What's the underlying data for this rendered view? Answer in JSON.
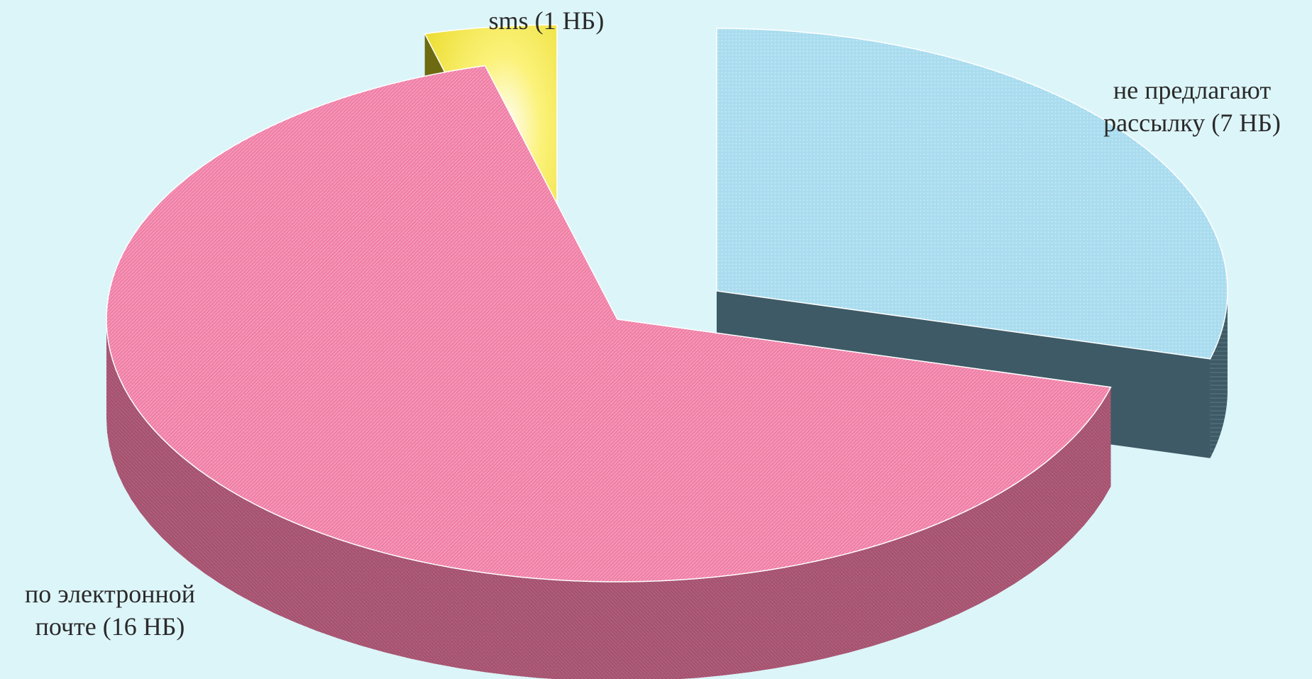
{
  "chart_data": {
    "type": "pie",
    "style": "3d-exploded",
    "title": "",
    "slices": [
      {
        "label": "sms (1 НБ)",
        "name": "sms",
        "value": 1,
        "color": "#f4ea3a",
        "side_color": "#6e6a12"
      },
      {
        "label": "не предлагают\nрассылку (7 НБ)",
        "name": "не предлагают рассылку",
        "value": 7,
        "color": "#a9dcee",
        "side_color": "#3e5a66"
      },
      {
        "label": "по электронной\nпочте (16 НБ)",
        "name": "по электронной почте",
        "value": 16,
        "color": "#f07fa6",
        "side_color": "#8c4560"
      }
    ],
    "legend": "none"
  }
}
